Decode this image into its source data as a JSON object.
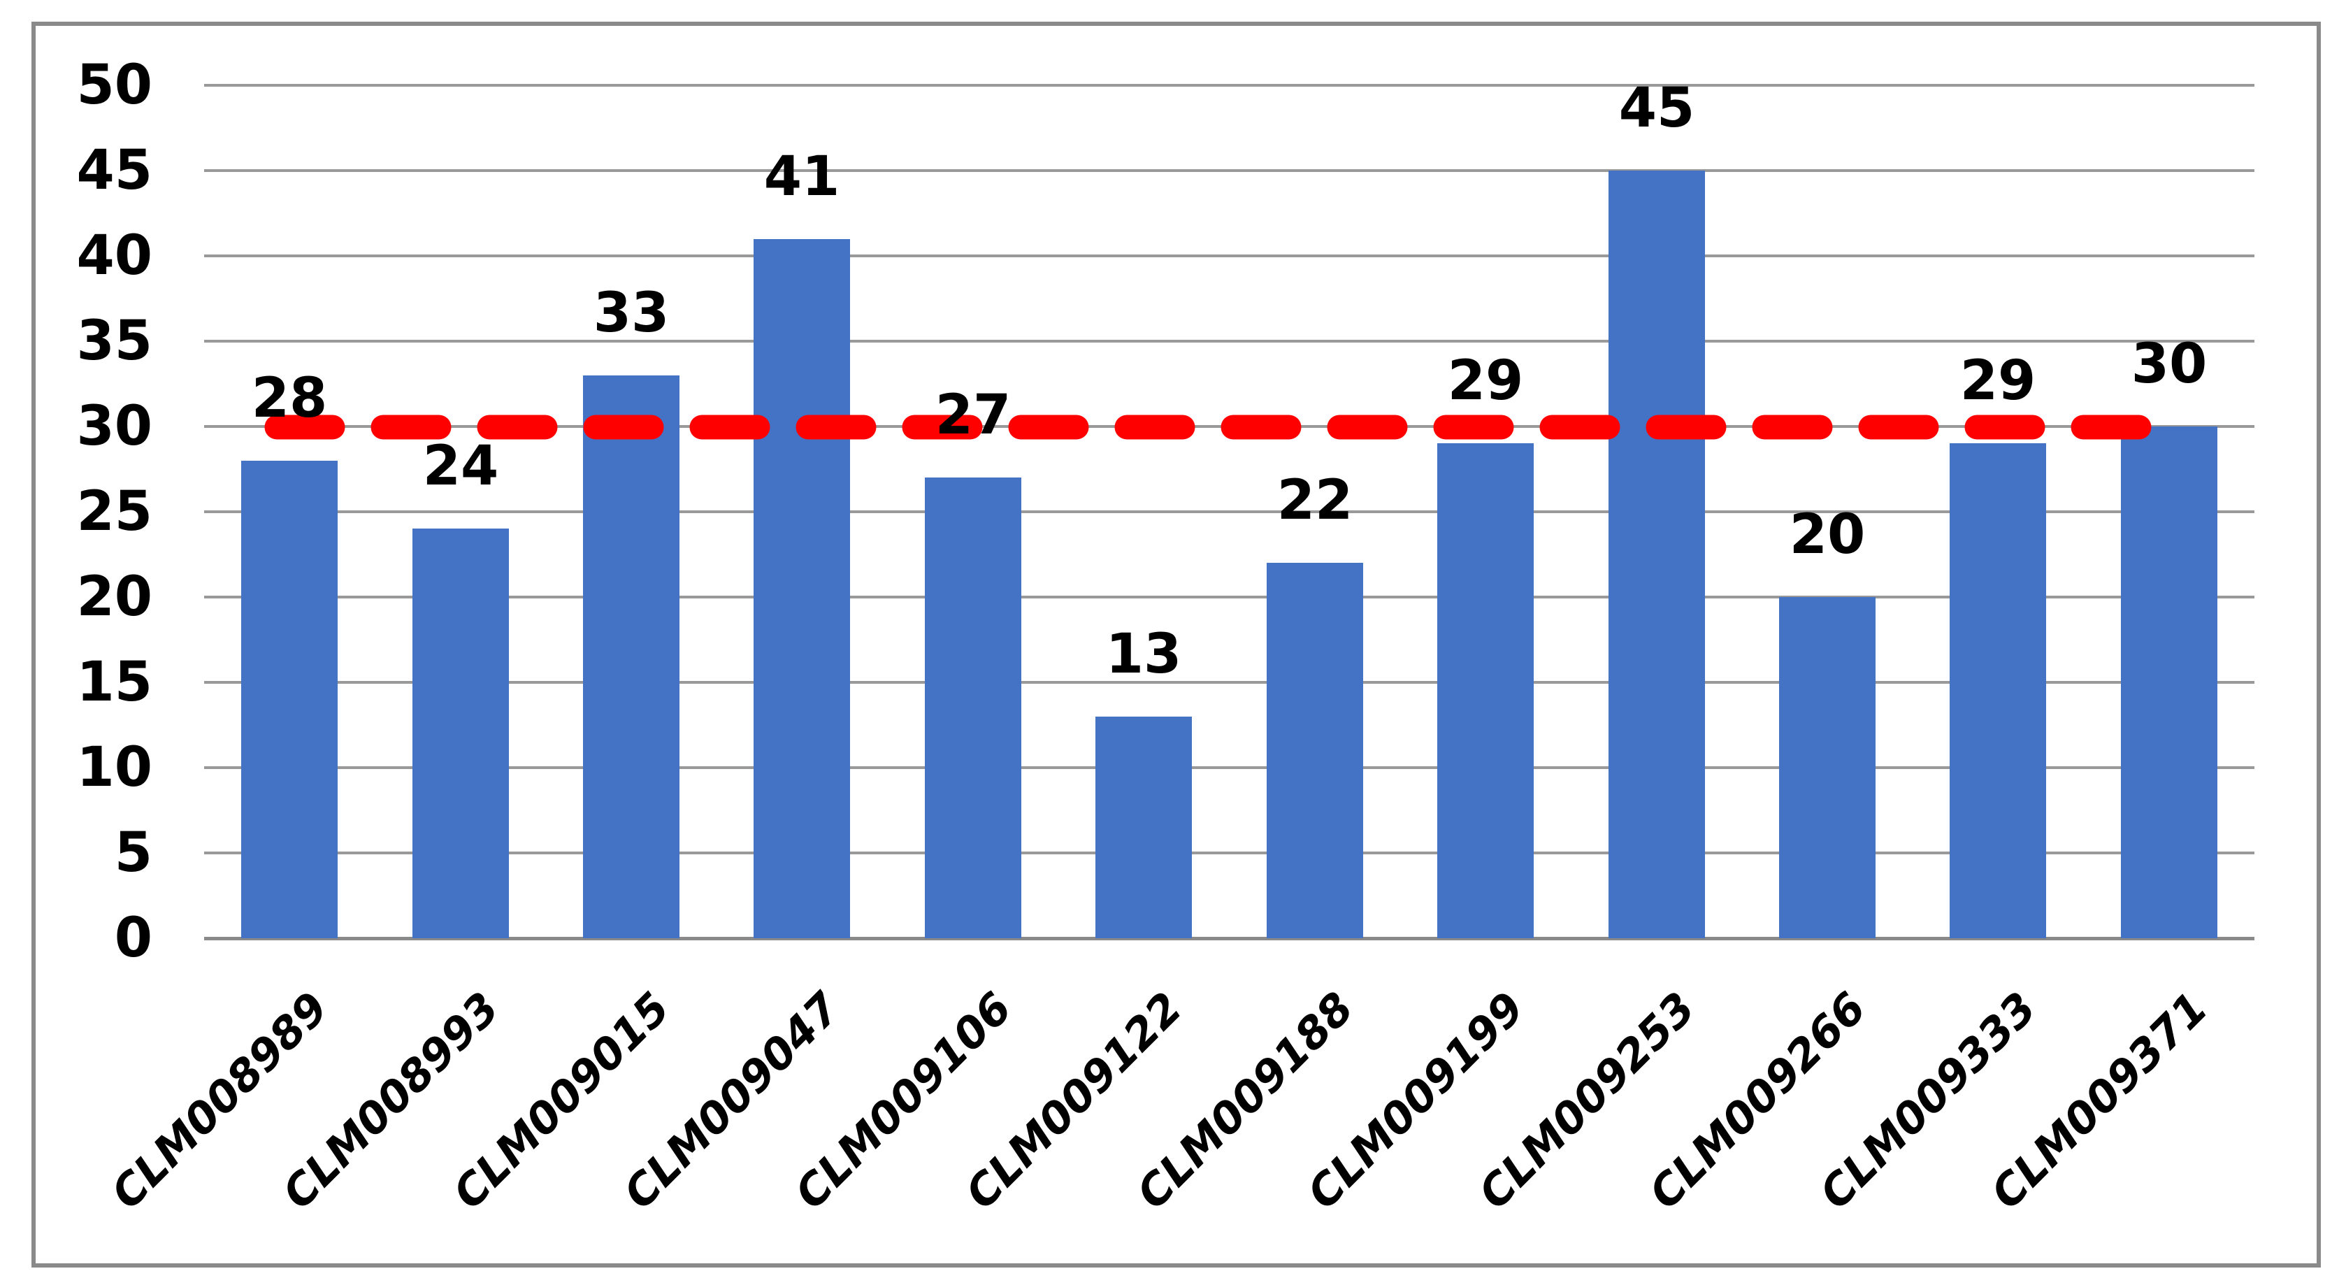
{
  "chart_data": {
    "type": "bar",
    "title": "",
    "xlabel": "",
    "ylabel": "",
    "categories": [
      "CLM008989",
      "CLM008993",
      "CLM009015",
      "CLM009047",
      "CLM009106",
      "CLM009122",
      "CLM009188",
      "CLM009199",
      "CLM009253",
      "CLM009266",
      "CLM009333",
      "CLM009371"
    ],
    "values": [
      28,
      24,
      33,
      41,
      27,
      13,
      22,
      29,
      45,
      20,
      29,
      30
    ],
    "yticks": [
      0,
      5,
      10,
      15,
      20,
      25,
      30,
      35,
      40,
      45,
      50
    ],
    "ylim": [
      0,
      50
    ],
    "grid": true,
    "legend": false,
    "reference_line": {
      "value": 30,
      "style": "dashed",
      "color": "#FF0000"
    },
    "colors": {
      "bar": "#4472C4",
      "gridline": "#999999",
      "axis_line": "#8A8A8A",
      "frame": "#8A8A8A",
      "data_label": "#000000",
      "tick_label": "#000000",
      "background": "#FFFFFF"
    }
  }
}
